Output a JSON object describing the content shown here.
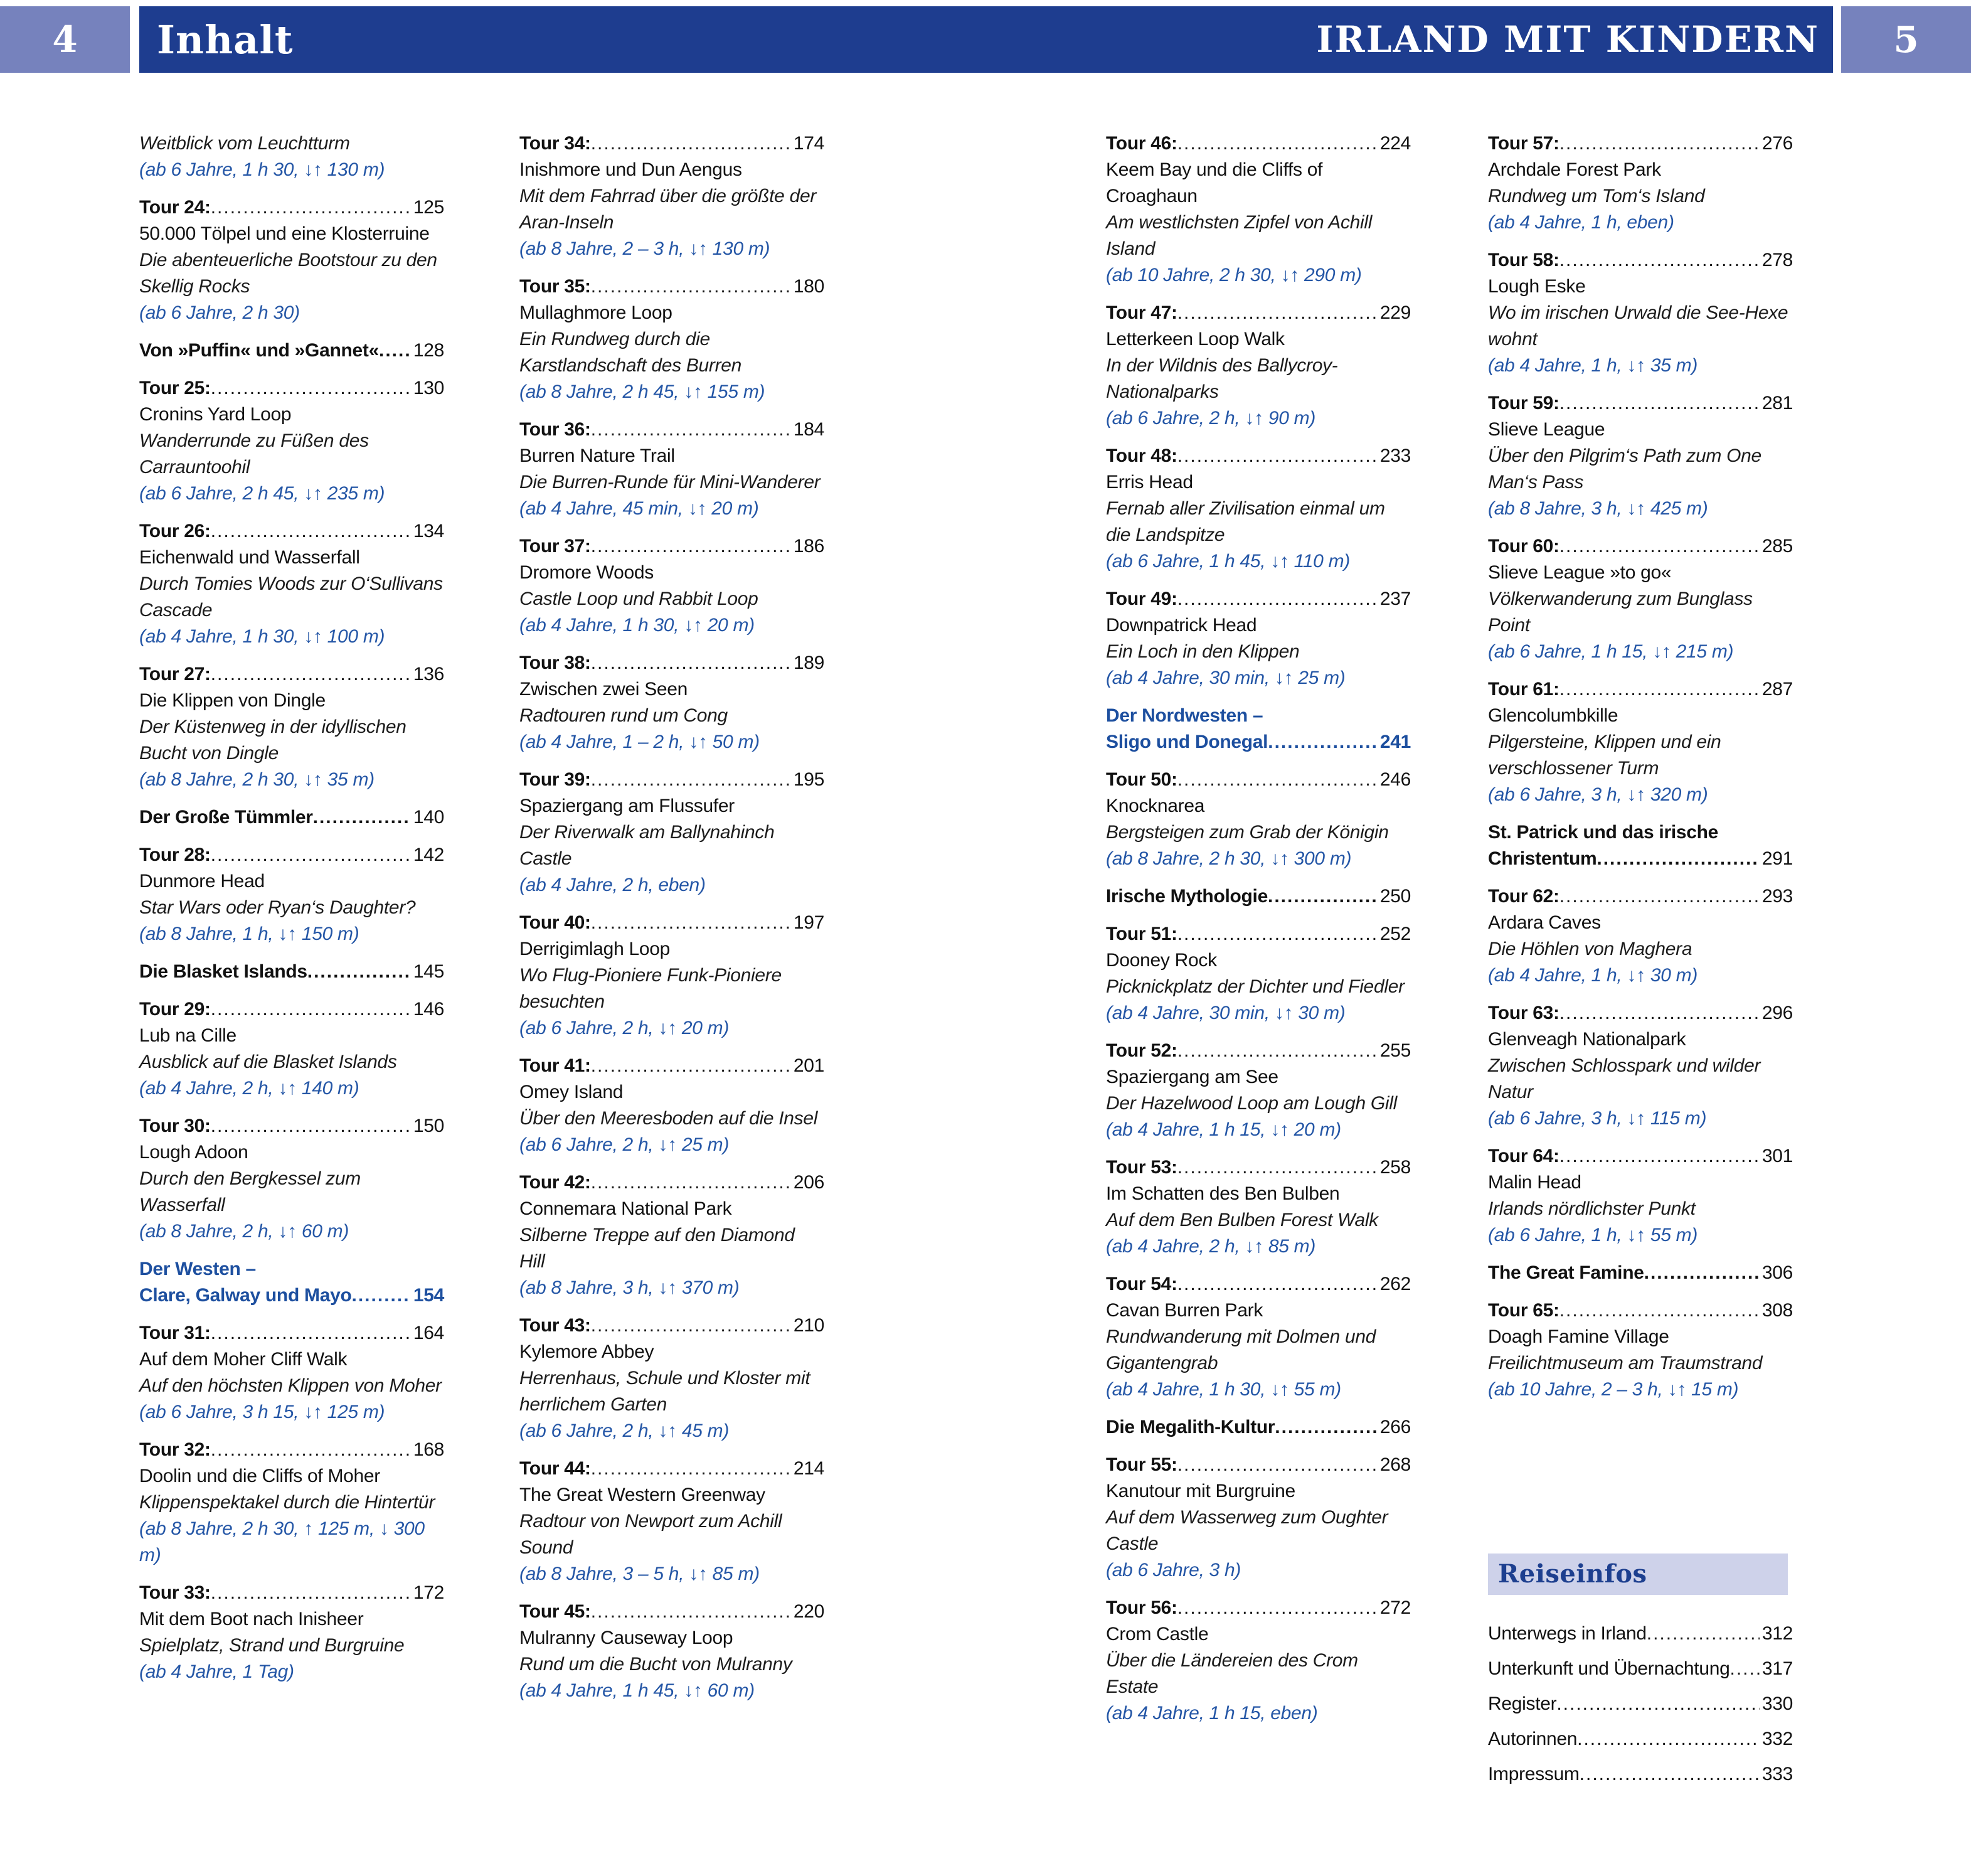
{
  "header": {
    "left_page": "4",
    "right_page": "5",
    "title": "Inhalt",
    "book_title": "IRLAND MIT KINDERN"
  },
  "colors": {
    "header_bar": "#1e3d8f",
    "page_number_box": "#7682bd",
    "heading_blue": "#1d4f9f",
    "info_blue": "#2456a6",
    "reiseinfos_bg": "#ced2ea",
    "text": "#111111"
  },
  "columns": [
    [
      {
        "type": "cont",
        "sub": "Weitblick vom Leuchtturm",
        "info": "(ab 6 Jahre, 1 h 30, ↓↑ 130 m)"
      },
      {
        "type": "tour",
        "label": "Tour 24:",
        "page": "125",
        "title": "50.000 Tölpel und eine Klosterruine",
        "sub": "Die abenteuerliche Bootstour zu den Skellig Rocks",
        "info": "(ab 6 Jahre, 2 h 30)"
      },
      {
        "type": "h1",
        "lines": [
          "Von »Puffin« und »Gannet«"
        ],
        "page": "128"
      },
      {
        "type": "tour",
        "label": "Tour 25:",
        "page": "130",
        "title": "Cronins Yard Loop",
        "sub": "Wanderrunde zu Füßen des Carrauntoohil",
        "info": "(ab 6 Jahre, 2 h 45, ↓↑ 235 m)"
      },
      {
        "type": "tour",
        "label": "Tour 26:",
        "page": "134",
        "title": "Eichenwald und Wasserfall",
        "sub": "Durch Tomies Woods zur O‘Sullivans Cascade",
        "info": "(ab 4 Jahre, 1 h 30, ↓↑ 100 m)"
      },
      {
        "type": "tour",
        "label": "Tour 27:",
        "page": "136",
        "title": "Die Klippen von Dingle",
        "sub": "Der Küstenweg in der idyllischen Bucht von Dingle",
        "info": "(ab 8 Jahre, 2 h 30, ↓↑ 35 m)"
      },
      {
        "type": "h1",
        "lines": [
          "Der Große Tümmler"
        ],
        "page": "140"
      },
      {
        "type": "tour",
        "label": "Tour 28:",
        "page": "142",
        "title": "Dunmore Head",
        "sub": "Star Wars oder Ryan‘s Daughter?",
        "info": "(ab 8 Jahre, 1 h, ↓↑ 150 m)"
      },
      {
        "type": "h1",
        "lines": [
          "Die Blasket Islands"
        ],
        "page": "145"
      },
      {
        "type": "tour",
        "label": "Tour 29:",
        "page": "146",
        "title": "Lub na Cille",
        "sub": "Ausblick auf die Blasket Islands",
        "info": "(ab 4 Jahre, 2 h, ↓↑ 140 m)"
      },
      {
        "type": "tour",
        "label": "Tour 30:",
        "page": "150",
        "title": "Lough Adoon",
        "sub": "Durch den Bergkessel zum Wasserfall",
        "info": "(ab 8 Jahre, 2 h, ↓↑ 60 m)"
      },
      {
        "type": "h2",
        "lines": [
          "Der Westen –",
          "Clare, Galway und Mayo"
        ],
        "page": "154"
      },
      {
        "type": "tour",
        "label": "Tour 31:",
        "page": "164",
        "title": "Auf dem Moher Cliff Walk",
        "sub": "Auf den höchsten Klippen von Moher",
        "info": "(ab 6 Jahre, 3 h 15, ↓↑ 125 m)"
      },
      {
        "type": "tour",
        "label": "Tour 32:",
        "page": "168",
        "title": "Doolin und die Cliffs of Moher",
        "sub": "Klippenspektakel durch die Hintertür",
        "info": "(ab 8 Jahre, 2 h 30, ↑ 125 m, ↓ 300 m)"
      },
      {
        "type": "tour",
        "label": "Tour 33:",
        "page": "172",
        "title": "Mit dem Boot nach Inisheer",
        "sub": "Spielplatz, Strand und Burgruine",
        "info": "(ab 4 Jahre, 1 Tag)"
      }
    ],
    [
      {
        "type": "tour",
        "label": "Tour 34:",
        "page": "174",
        "title": "Inishmore und Dun Aengus",
        "sub": "Mit dem Fahrrad über die größte der Aran-Inseln",
        "info": "(ab 8 Jahre, 2 – 3 h, ↓↑ 130 m)"
      },
      {
        "type": "tour",
        "label": "Tour 35:",
        "page": "180",
        "title": "Mullaghmore Loop",
        "sub": "Ein Rundweg durch die Karstlandschaft des Burren",
        "info": "(ab 8 Jahre, 2 h 45, ↓↑ 155 m)"
      },
      {
        "type": "tour",
        "label": "Tour 36:",
        "page": "184",
        "title": "Burren Nature Trail",
        "sub": "Die Burren-Runde für Mini-Wanderer",
        "info": "(ab 4 Jahre, 45 min, ↓↑ 20 m)"
      },
      {
        "type": "tour",
        "label": "Tour 37:",
        "page": "186",
        "title": "Dromore Woods",
        "sub": "Castle Loop und Rabbit Loop",
        "info": "(ab 4 Jahre, 1 h 30, ↓↑ 20 m)"
      },
      {
        "type": "tour",
        "label": "Tour 38:",
        "page": "189",
        "title": "Zwischen zwei Seen",
        "sub": "Radtouren rund um Cong",
        "info": "(ab 4 Jahre, 1 – 2 h, ↓↑ 50 m)"
      },
      {
        "type": "tour",
        "label": "Tour 39:",
        "page": "195",
        "title": "Spaziergang am Flussufer",
        "sub": "Der Riverwalk am Ballynahinch Castle",
        "info": "(ab 4 Jahre, 2 h, eben)"
      },
      {
        "type": "tour",
        "label": "Tour 40:",
        "page": "197",
        "title": "Derrigimlagh Loop",
        "sub": "Wo Flug-Pioniere Funk-Pioniere besuchten",
        "info": "(ab 6 Jahre, 2 h, ↓↑ 20 m)"
      },
      {
        "type": "tour",
        "label": "Tour 41:",
        "page": "201",
        "title": "Omey Island",
        "sub": "Über den Meeresboden auf die Insel",
        "info": "(ab 6 Jahre, 2 h, ↓↑ 25 m)"
      },
      {
        "type": "tour",
        "label": "Tour 42:",
        "page": "206",
        "title": "Connemara National Park",
        "sub": "Silberne Treppe auf den Diamond Hill",
        "info": "(ab 8 Jahre, 3 h, ↓↑ 370 m)"
      },
      {
        "type": "tour",
        "label": "Tour 43:",
        "page": "210",
        "title": "Kylemore Abbey",
        "sub": "Herrenhaus, Schule und Kloster mit herrlichem Garten",
        "info": "(ab 6 Jahre, 2 h, ↓↑ 45 m)"
      },
      {
        "type": "tour",
        "label": "Tour 44:",
        "page": "214",
        "title": "The Great Western Greenway",
        "sub": "Radtour von Newport zum Achill Sound",
        "info": "(ab 8 Jahre, 3 – 5 h, ↓↑ 85 m)"
      },
      {
        "type": "tour",
        "label": "Tour 45:",
        "page": "220",
        "title": "Mulranny Causeway Loop",
        "sub": "Rund um die Bucht von Mulranny",
        "info": "(ab 4 Jahre, 1 h 45, ↓↑ 60 m)"
      }
    ],
    [
      {
        "type": "tour",
        "label": "Tour 46:",
        "page": "224",
        "title": "Keem Bay und die Cliffs of Croaghaun",
        "sub": "Am westlichsten Zipfel von Achill Island",
        "info": "(ab 10 Jahre, 2 h 30, ↓↑ 290 m)"
      },
      {
        "type": "tour",
        "label": "Tour 47:",
        "page": "229",
        "title": "Letterkeen Loop Walk",
        "sub": "In der Wildnis des Ballycroy-Nationalparks",
        "info": "(ab 6 Jahre, 2 h, ↓↑ 90 m)"
      },
      {
        "type": "tour",
        "label": "Tour 48:",
        "page": "233",
        "title": "Erris Head",
        "sub": "Fernab aller Zivilisation einmal um die Landspitze",
        "info": "(ab 6 Jahre, 1 h 45, ↓↑ 110 m)"
      },
      {
        "type": "tour",
        "label": "Tour 49:",
        "page": "237",
        "title": "Downpatrick Head",
        "sub": "Ein Loch in den Klippen",
        "info": "(ab 4 Jahre, 30 min, ↓↑ 25 m)"
      },
      {
        "type": "h2",
        "lines": [
          "Der Nordwesten –",
          "Sligo und Donegal"
        ],
        "page": "241"
      },
      {
        "type": "tour",
        "label": "Tour 50:",
        "page": "246",
        "title": "Knocknarea",
        "sub": "Bergsteigen zum Grab der Königin",
        "info": "(ab 8 Jahre, 2 h 30, ↓↑ 300 m)"
      },
      {
        "type": "h1",
        "lines": [
          "Irische Mythologie"
        ],
        "page": "250"
      },
      {
        "type": "tour",
        "label": "Tour 51:",
        "page": "252",
        "title": "Dooney Rock",
        "sub": "Picknickplatz der Dichter und Fiedler",
        "info": "(ab 4 Jahre, 30 min, ↓↑ 30 m)"
      },
      {
        "type": "tour",
        "label": "Tour 52:",
        "page": "255",
        "title": "Spaziergang am See",
        "sub": "Der Hazelwood Loop am Lough Gill",
        "info": "(ab 4 Jahre, 1 h 15, ↓↑ 20 m)"
      },
      {
        "type": "tour",
        "label": "Tour 53:",
        "page": "258",
        "title": "Im Schatten des Ben Bulben",
        "sub": "Auf dem Ben Bulben Forest Walk",
        "info": "(ab 4 Jahre, 2 h, ↓↑ 85 m)"
      },
      {
        "type": "tour",
        "label": "Tour 54:",
        "page": "262",
        "title": "Cavan Burren Park",
        "sub": "Rundwanderung mit Dolmen und Gigantengrab",
        "info": "(ab 4 Jahre, 1 h 30, ↓↑ 55 m)"
      },
      {
        "type": "h1",
        "lines": [
          "Die Megalith-Kultur"
        ],
        "page": "266"
      },
      {
        "type": "tour",
        "label": "Tour 55:",
        "page": "268",
        "title": "Kanutour mit Burgruine",
        "sub": "Auf dem Wasserweg zum Oughter Castle",
        "info": "(ab 6 Jahre, 3 h)"
      },
      {
        "type": "tour",
        "label": "Tour 56:",
        "page": "272",
        "title": "Crom Castle",
        "sub": "Über die Ländereien des Crom Estate",
        "info": "(ab 4 Jahre, 1 h 15, eben)"
      }
    ],
    [
      {
        "type": "tour",
        "label": "Tour 57:",
        "page": "276",
        "title": "Archdale Forest Park",
        "sub": "Rundweg um Tom‘s Island",
        "info": "(ab 4 Jahre, 1 h, eben)"
      },
      {
        "type": "tour",
        "label": "Tour 58:",
        "page": "278",
        "title": "Lough Eske",
        "sub": "Wo im irischen Urwald die See-Hexe wohnt",
        "info": "(ab 4 Jahre, 1 h, ↓↑ 35 m)"
      },
      {
        "type": "tour",
        "label": "Tour 59:",
        "page": "281",
        "title": "Slieve League",
        "sub": "Über den Pilgrim‘s Path zum One Man‘s Pass",
        "info": "(ab 8 Jahre, 3 h, ↓↑ 425 m)"
      },
      {
        "type": "tour",
        "label": "Tour 60:",
        "page": "285",
        "title": "Slieve League »to go«",
        "sub": "Völkerwanderung zum Bunglass Point",
        "info": "(ab 6 Jahre, 1 h 15, ↓↑ 215 m)"
      },
      {
        "type": "tour",
        "label": "Tour 61:",
        "page": "287",
        "title": "Glencolumbkille",
        "sub": "Pilgersteine, Klippen und ein verschlossener Turm",
        "info": "(ab 6 Jahre, 3 h, ↓↑ 320 m)"
      },
      {
        "type": "h1",
        "lines": [
          "St. Patrick und das irische",
          "Christentum"
        ],
        "page": "291"
      },
      {
        "type": "tour",
        "label": "Tour 62:",
        "page": "293",
        "title": "Ardara Caves",
        "sub": "Die Höhlen von Maghera",
        "info": "(ab 4 Jahre, 1 h, ↓↑ 30 m)"
      },
      {
        "type": "tour",
        "label": "Tour 63:",
        "page": "296",
        "title": "Glenveagh Nationalpark",
        "sub": "Zwischen Schlosspark und wilder Natur",
        "info": "(ab 6 Jahre, 3 h, ↓↑ 115 m)"
      },
      {
        "type": "tour",
        "label": "Tour 64:",
        "page": "301",
        "title": "Malin Head",
        "sub": "Irlands nördlichster Punkt",
        "info": "(ab 6 Jahre, 1 h, ↓↑ 55 m)"
      },
      {
        "type": "h1",
        "lines": [
          "The Great Famine"
        ],
        "page": "306"
      },
      {
        "type": "tour",
        "label": "Tour 65:",
        "page": "308",
        "title": "Doagh Famine Village",
        "sub": "Freilichtmuseum am Traumstrand",
        "info": "(ab 10 Jahre, 2 – 3 h, ↓↑ 15 m)"
      }
    ]
  ],
  "reiseinfos": {
    "title": "Reiseinfos",
    "items": [
      {
        "label": "Unterwegs in Irland",
        "page": "312"
      },
      {
        "label": "Unterkunft und Übernachtung",
        "page": "317"
      },
      {
        "label": "Register",
        "page": "330"
      },
      {
        "label": "Autorinnen",
        "page": "332"
      },
      {
        "label": "Impressum",
        "page": "333"
      }
    ]
  }
}
